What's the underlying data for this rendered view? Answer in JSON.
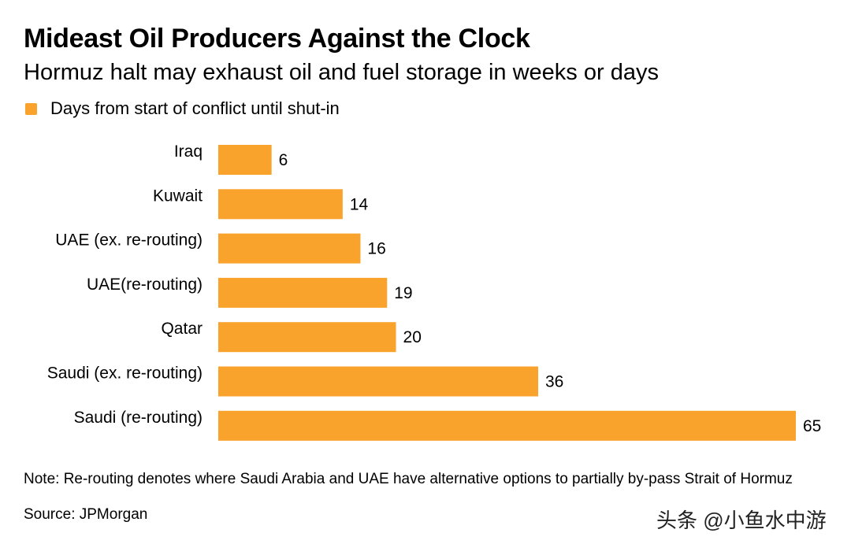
{
  "header": {
    "title": "Mideast Oil Producers Against the Clock",
    "subtitle": "Hormuz halt may exhaust oil and fuel storage in weeks or days"
  },
  "legend": {
    "label": "Days from start of conflict until shut-in"
  },
  "footer": {
    "note": "Note: Re-routing denotes where Saudi Arabia and UAE have alternative options to partially by-pass Strait of Hormuz",
    "source": "Source: JPMorgan"
  },
  "watermark": {
    "text": "头条 @小鱼水中游"
  },
  "colors": {
    "bar": "#F9A22C",
    "text": "#000000"
  },
  "chart_data": {
    "type": "bar",
    "orientation": "horizontal",
    "title": "Mideast Oil Producers Against the Clock",
    "subtitle": "Hormuz halt may exhaust oil and fuel storage in weeks or days",
    "categories": [
      "Iraq",
      "Kuwait",
      "UAE (ex. re-routing)",
      "UAE(re-routing)",
      "Qatar",
      "Saudi (ex. re-routing)",
      "Saudi (re-routing)"
    ],
    "series": [
      {
        "name": "Days from start of conflict until shut-in",
        "values": [
          6,
          14,
          16,
          19,
          20,
          36,
          65
        ]
      }
    ],
    "xlabel": "",
    "ylabel": "",
    "xlim": [
      0,
      65
    ],
    "grid": false,
    "legend_position": "top-left",
    "data_labels": true
  }
}
